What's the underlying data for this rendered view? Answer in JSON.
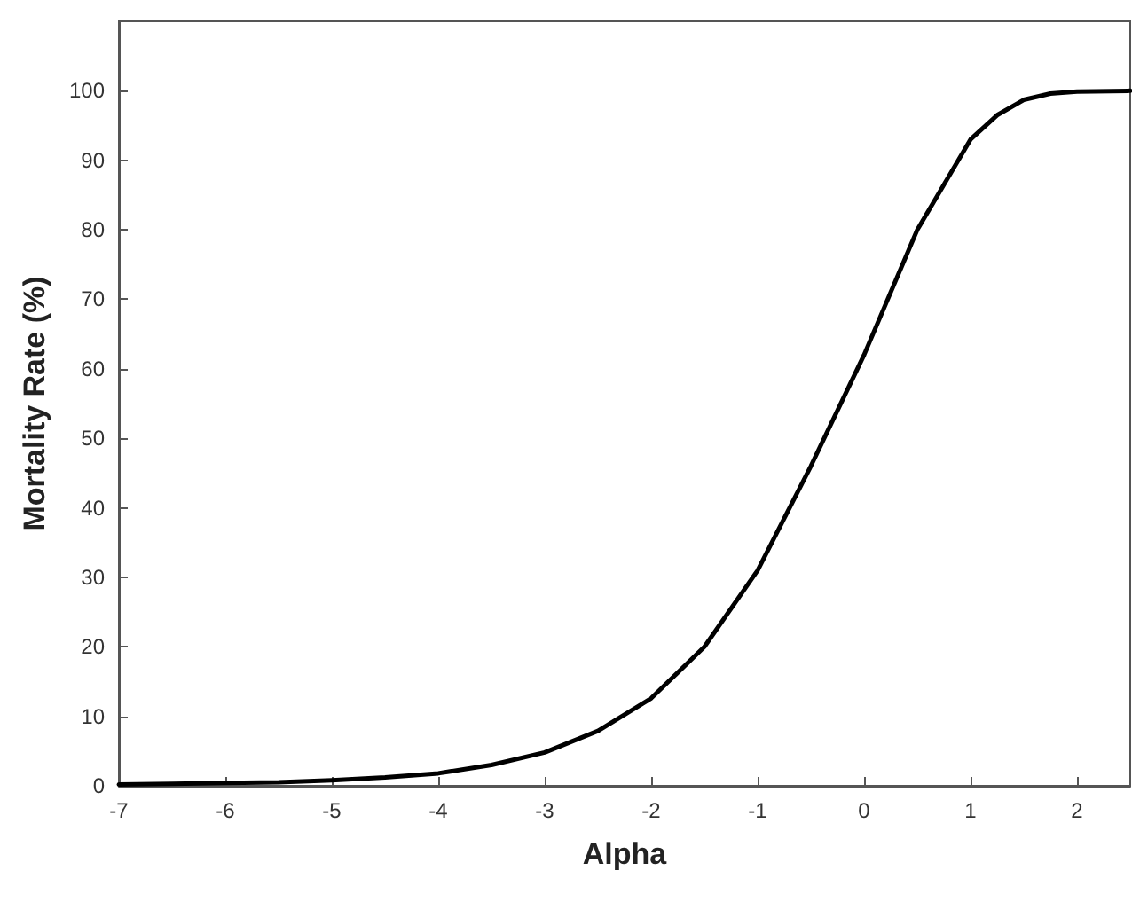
{
  "chart_data": {
    "type": "line",
    "xlabel": "Alpha",
    "ylabel": "Mortality Rate (%)",
    "series": [
      {
        "color": "#000000",
        "x": [
          -7,
          -6.5,
          -6,
          -5.5,
          -5,
          -4.5,
          -4,
          -3.5,
          -3,
          -2.5,
          -2,
          -1.5,
          -1,
          -0.5,
          0,
          0.5,
          1,
          1.25,
          1.5,
          1.75,
          2,
          2.5
        ],
        "values": [
          0.2,
          0.3,
          0.4,
          0.5,
          0.8,
          1.2,
          1.8,
          3,
          4.8,
          7.9,
          12.6,
          20,
          31,
          46,
          62,
          80,
          93,
          96.5,
          98.7,
          99.6,
          99.9,
          100
        ]
      }
    ],
    "xlim": [
      -7,
      2.5
    ],
    "xticks": [
      -7,
      -6,
      -5,
      -4,
      -3,
      -2,
      -1,
      0,
      1,
      2
    ],
    "ylim": [
      0,
      110
    ],
    "yticks": [
      0,
      10,
      20,
      30,
      40,
      50,
      60,
      70,
      80,
      90,
      100
    ],
    "grid": false,
    "marker": "none",
    "line_style": "solid"
  }
}
